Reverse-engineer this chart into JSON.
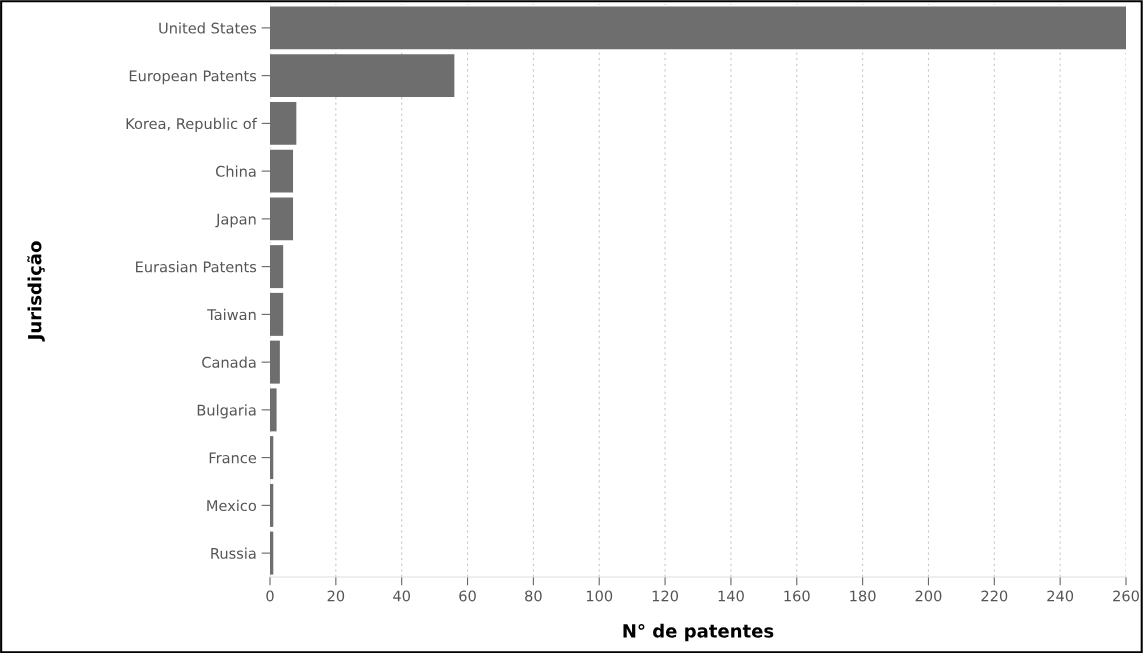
{
  "chart_data": {
    "type": "bar",
    "orientation": "horizontal",
    "categories": [
      "United States",
      "European Patents",
      "Korea, Republic of",
      "China",
      "Japan",
      "Eurasian Patents",
      "Taiwan",
      "Canada",
      "Bulgaria",
      "France",
      "Mexico",
      "Russia"
    ],
    "values": [
      260,
      56,
      8,
      7,
      7,
      4,
      4,
      3,
      2,
      1,
      1,
      1
    ],
    "color": "#6e6e6e",
    "xlabel": "N° de patentes",
    "ylabel": "Jurisdição",
    "xlim": [
      0,
      260
    ],
    "xticks": [
      0,
      20,
      40,
      60,
      80,
      100,
      120,
      140,
      160,
      180,
      200,
      220,
      240,
      260
    ],
    "grid": "x"
  }
}
